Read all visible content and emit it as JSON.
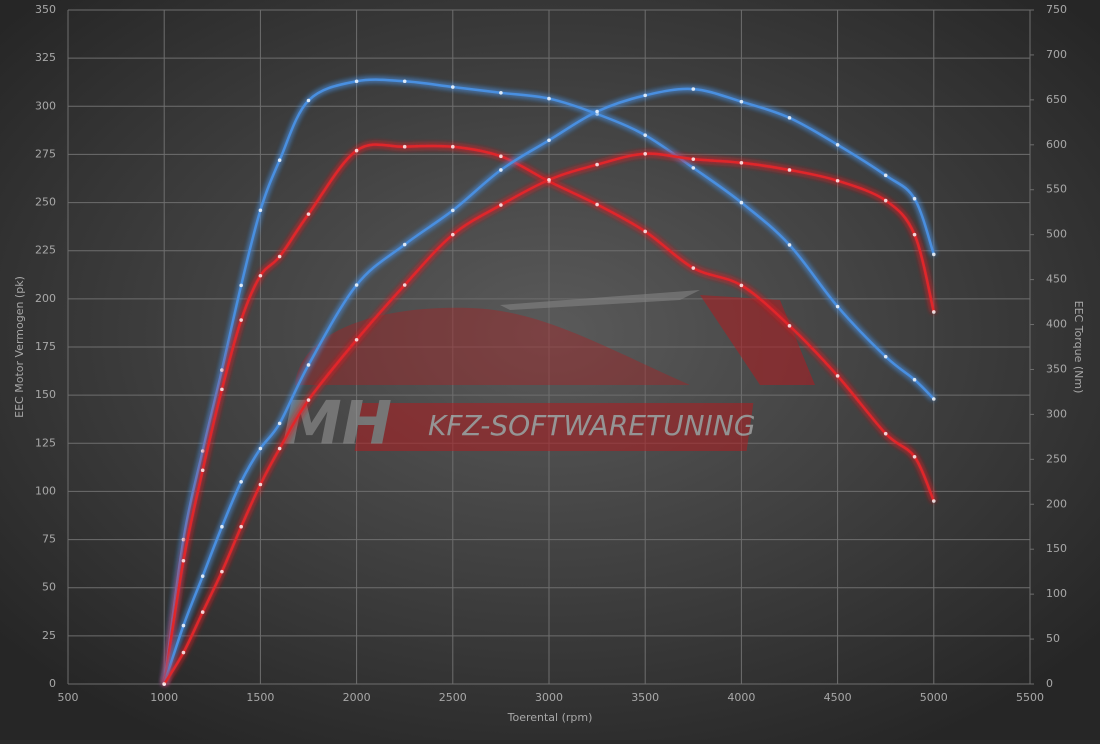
{
  "chart_data": {
    "type": "line",
    "x_label": "Toerental (rpm)",
    "y_label": "EEC Motor Vermogen (pk)",
    "y2_label": "EEC Torque (Nm)",
    "watermark": [
      "MH",
      "KFZ-SOFTWARETUNING"
    ],
    "x": [
      1000,
      1100,
      1200,
      1300,
      1400,
      1500,
      1600,
      1750,
      2000,
      2250,
      2500,
      2750,
      3000,
      3250,
      3500,
      3750,
      4000,
      4250,
      4500,
      4750,
      4900,
      5000
    ],
    "series": [
      {
        "color": "#4a8fe0",
        "values": [
          0,
          75,
          121,
          163,
          207,
          246,
          272,
          303,
          313,
          313,
          310,
          307,
          304,
          296,
          285,
          268,
          250,
          228,
          196,
          170,
          158,
          148
        ]
      },
      {
        "color": "#e0262a",
        "values": [
          0,
          64,
          111,
          153,
          189,
          212,
          222,
          244,
          277,
          279,
          279,
          274,
          261,
          249,
          235,
          216,
          207,
          186,
          160,
          130,
          118,
          95
        ]
      },
      {
        "color": "#4a8fe0",
        "axis": "y2",
        "values": [
          0,
          65,
          120,
          175,
          225,
          262,
          290,
          355,
          444,
          489,
          527,
          572,
          605,
          637,
          655,
          662,
          648,
          630,
          600,
          566,
          540,
          478
        ]
      },
      {
        "color": "#e0262a",
        "axis": "y2",
        "values": [
          0,
          35,
          80,
          125,
          175,
          222,
          262,
          316,
          383,
          444,
          500,
          533,
          561,
          578,
          590,
          584,
          580,
          572,
          560,
          538,
          500,
          414
        ]
      }
    ],
    "xlim": [
      500,
      5500
    ],
    "xticks": [
      500,
      1000,
      1500,
      2000,
      2500,
      3000,
      3500,
      4000,
      4500,
      5000,
      5500
    ],
    "ylim": [
      0,
      350
    ],
    "yticks": [
      0,
      25,
      50,
      75,
      100,
      125,
      150,
      175,
      200,
      225,
      250,
      275,
      300,
      325,
      350
    ],
    "y2lim": [
      0,
      750
    ],
    "y2ticks": [
      0,
      50,
      100,
      150,
      200,
      250,
      300,
      350,
      400,
      450,
      500,
      550,
      600,
      650,
      700,
      750
    ],
    "grid": true
  }
}
